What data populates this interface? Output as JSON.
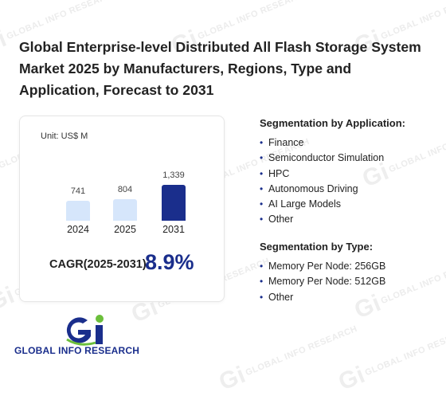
{
  "header": {
    "title": "Global Enterprise-level Distributed All Flash Storage System Market 2025 by Manufacturers, Regions, Type and Application, Forecast to 2031"
  },
  "chart_card": {
    "unit_label": "Unit: US$ M",
    "cagr_label": "CAGR(2025-2031):",
    "cagr_value": "8.9%"
  },
  "chart_data": {
    "type": "bar",
    "categories": [
      "2024",
      "2025",
      "2031"
    ],
    "values": [
      741,
      804,
      1339
    ],
    "value_labels": [
      "741",
      "804",
      "1,339"
    ],
    "colors": [
      "#d6e6fb",
      "#d6e6fb",
      "#1a2e8c"
    ],
    "title": "",
    "xlabel": "",
    "ylabel": ""
  },
  "segmentation_application": {
    "heading": "Segmentation by Application:",
    "items": [
      "Finance",
      "Semiconductor Simulation",
      "HPC",
      "Autonomous Driving",
      "AI Large Models",
      "Other"
    ]
  },
  "segmentation_type": {
    "heading": "Segmentation by Type:",
    "items": [
      "Memory Per Node: 256GB",
      "Memory Per Node: 512GB",
      "Other"
    ]
  },
  "logo": {
    "text": "GLOBAL INFO RESEARCH",
    "colors": {
      "primary": "#1a2e8c",
      "accent": "#6bbf3b"
    }
  },
  "watermark": {
    "text": "GLOBAL INFO RESEARCH"
  }
}
